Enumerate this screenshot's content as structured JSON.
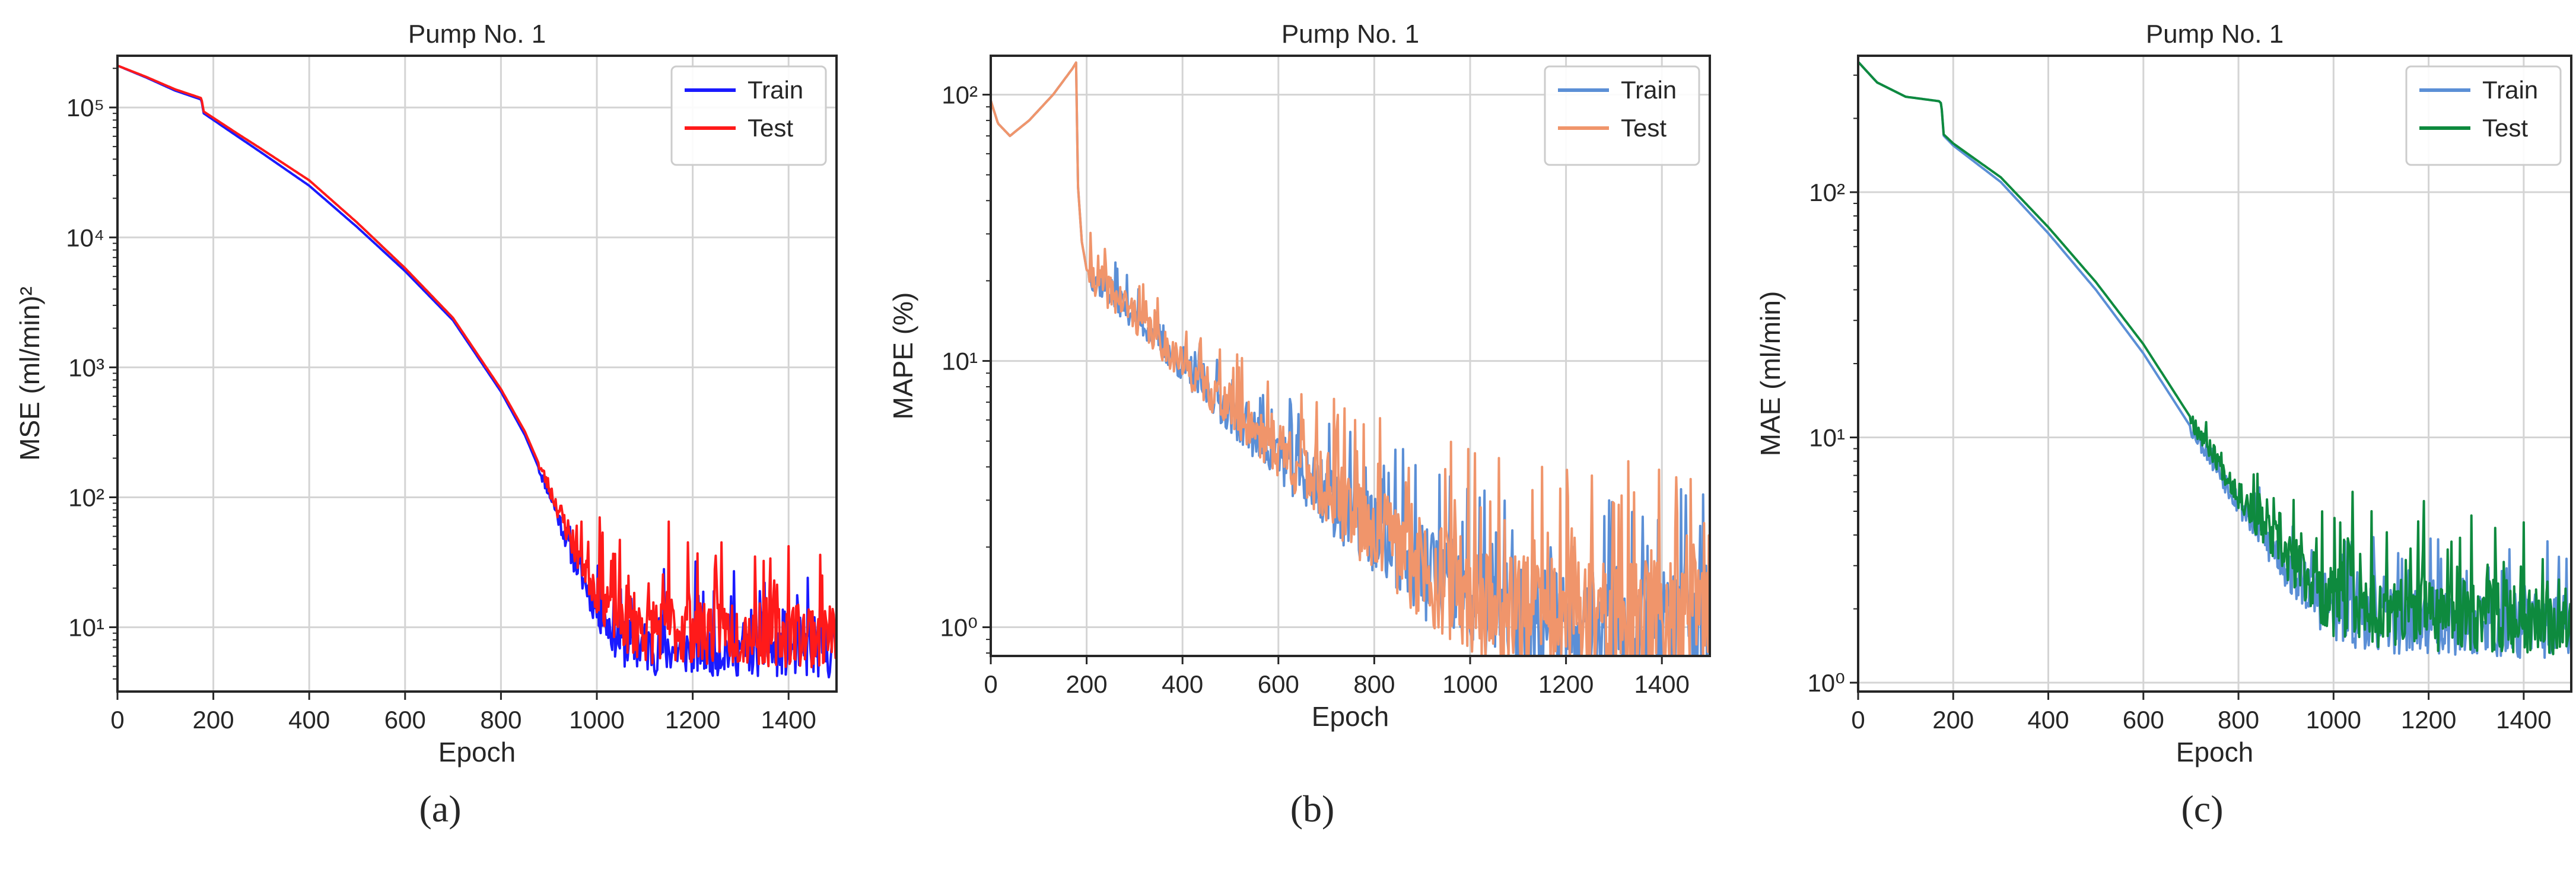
{
  "figure": {
    "captions": [
      "(a)",
      "(b)",
      "(c)"
    ]
  },
  "chart_data": [
    {
      "id": "a",
      "type": "line",
      "title": "Pump No. 1",
      "xlabel": "Epoch",
      "ylabel": "MSE (ml/min)²",
      "caption": "(a)",
      "yscale": "log",
      "xlim": [
        0,
        1500
      ],
      "ylim": [
        3.2,
        250000
      ],
      "xticks": [
        0,
        200,
        400,
        600,
        800,
        1000,
        1200,
        1400
      ],
      "yticks": [
        10,
        100,
        1000,
        10000,
        100000
      ],
      "ytick_labels": [
        "10¹",
        "10²",
        "10³",
        "10⁴",
        "10⁵"
      ],
      "grid": true,
      "legend_position": "top-right",
      "series": [
        {
          "name": "Train",
          "color": "#1a1aff",
          "width": 4,
          "anchors": [
            [
              0,
              210000
            ],
            [
              60,
              170000
            ],
            [
              120,
              135000
            ],
            [
              175,
              115000
            ],
            [
              180,
              90000
            ],
            [
              250,
              60000
            ],
            [
              300,
              45000
            ],
            [
              400,
              25000
            ],
            [
              500,
              12000
            ],
            [
              600,
              5500
            ],
            [
              700,
              2300
            ],
            [
              800,
              650
            ],
            [
              850,
              300
            ],
            [
              900,
              110
            ],
            [
              950,
              35
            ],
            [
              1000,
              14
            ],
            [
              1050,
              8
            ],
            [
              1100,
              7
            ],
            [
              1500,
              6.5
            ]
          ],
          "noise": {
            "start": 880,
            "base_amp": 0.1,
            "full_amp": 0.42,
            "ramp_start": 900,
            "ramp_end": 1050,
            "spikes": [
              [
                1010,
                50
              ],
              [
                1140,
                28
              ],
              [
                1205,
                32
              ],
              [
                1285,
                27
              ],
              [
                1350,
                22
              ],
              [
                1440,
                24
              ]
            ]
          },
          "seed": 11
        },
        {
          "name": "Test",
          "color": "#ff1a1a",
          "width": 4,
          "anchors": [
            [
              0,
              210000
            ],
            [
              60,
              172000
            ],
            [
              120,
              138000
            ],
            [
              175,
              118000
            ],
            [
              180,
              93000
            ],
            [
              250,
              63000
            ],
            [
              300,
              48000
            ],
            [
              400,
              27500
            ],
            [
              500,
              13000
            ],
            [
              600,
              5800
            ],
            [
              700,
              2400
            ],
            [
              800,
              680
            ],
            [
              850,
              320
            ],
            [
              900,
              120
            ],
            [
              950,
              45
            ],
            [
              1000,
              20
            ],
            [
              1050,
              12
            ],
            [
              1100,
              10
            ],
            [
              1500,
              9
            ]
          ],
          "noise": {
            "start": 880,
            "base_amp": 0.12,
            "full_amp": 0.55,
            "ramp_start": 900,
            "ramp_end": 1050,
            "spikes": [
              [
                1005,
                70
              ],
              [
                1150,
                65
              ],
              [
                1190,
                45
              ],
              [
                1260,
                45
              ],
              [
                1330,
                35
              ],
              [
                1400,
                42
              ],
              [
                1470,
                25
              ]
            ]
          },
          "seed": 23
        }
      ]
    },
    {
      "id": "b",
      "type": "line",
      "title": "Pump No. 1",
      "xlabel": "Epoch",
      "ylabel": "MAPE (%)",
      "caption": "(b)",
      "yscale": "log",
      "xlim": [
        0,
        1500
      ],
      "ylim": [
        0.78,
        140
      ],
      "xticks": [
        0,
        200,
        400,
        600,
        800,
        1000,
        1200,
        1400
      ],
      "yticks": [
        1,
        10,
        100
      ],
      "ytick_labels": [
        "10⁰",
        "10¹",
        "10²"
      ],
      "grid": true,
      "legend_position": "top-right",
      "series": [
        {
          "name": "Train",
          "color": "#5b8fd6",
          "width": 4,
          "anchors": [
            [
              0,
              95
            ],
            [
              15,
              78
            ],
            [
              40,
              70
            ],
            [
              80,
              80
            ],
            [
              130,
              100
            ],
            [
              170,
              125
            ],
            [
              178,
              132
            ],
            [
              182,
              45
            ],
            [
              190,
              28
            ],
            [
              200,
              22
            ],
            [
              300,
              15
            ],
            [
              400,
              9.5
            ],
            [
              500,
              6.5
            ],
            [
              600,
              4.5
            ],
            [
              700,
              3.2
            ],
            [
              800,
              2.3
            ],
            [
              900,
              1.7
            ],
            [
              1000,
              1.3
            ],
            [
              1100,
              1.15
            ],
            [
              1200,
              1.1
            ],
            [
              1500,
              1.05
            ]
          ],
          "noise": {
            "start": 205,
            "base_amp": 0.12,
            "full_amp": 0.45,
            "ramp_start": 400,
            "ramp_end": 1000,
            "spikes": [
              [
                1360,
                2.6
              ],
              [
                1480,
                2.4
              ]
            ]
          },
          "seed": 37
        },
        {
          "name": "Test",
          "color": "#f0956b",
          "width": 4,
          "anchors": [
            [
              0,
              95
            ],
            [
              15,
              78
            ],
            [
              40,
              70
            ],
            [
              80,
              80
            ],
            [
              130,
              100
            ],
            [
              170,
              125
            ],
            [
              178,
              132
            ],
            [
              182,
              45
            ],
            [
              190,
              28
            ],
            [
              200,
              22
            ],
            [
              300,
              15
            ],
            [
              400,
              9.8
            ],
            [
              500,
              6.8
            ],
            [
              600,
              4.8
            ],
            [
              700,
              3.4
            ],
            [
              800,
              2.4
            ],
            [
              900,
              1.75
            ],
            [
              1000,
              1.35
            ],
            [
              1100,
              1.2
            ],
            [
              1200,
              1.15
            ],
            [
              1500,
              1.1
            ]
          ],
          "noise": {
            "start": 205,
            "base_amp": 0.14,
            "full_amp": 0.5,
            "ramp_start": 400,
            "ramp_end": 1000,
            "spikes": [
              [
                680,
                7
              ],
              [
                760,
                6
              ],
              [
                1010,
                4.5
              ],
              [
                1150,
                4
              ],
              [
                1330,
                4.2
              ],
              [
                1460,
                3.6
              ]
            ]
          },
          "seed": 41
        }
      ]
    },
    {
      "id": "c",
      "type": "line",
      "title": "Pump No. 1",
      "xlabel": "Epoch",
      "ylabel": "MAE (ml/min)",
      "caption": "(c)",
      "yscale": "log",
      "xlim": [
        0,
        1500
      ],
      "ylim": [
        0.92,
        360
      ],
      "xticks": [
        0,
        200,
        400,
        600,
        800,
        1000,
        1200,
        1400
      ],
      "yticks": [
        1,
        10,
        100
      ],
      "ytick_labels": [
        "10⁰",
        "10¹",
        "10²"
      ],
      "grid": true,
      "legend_position": "top-right",
      "series": [
        {
          "name": "Train",
          "color": "#5b8fd6",
          "width": 4,
          "anchors": [
            [
              0,
              340
            ],
            [
              40,
              280
            ],
            [
              100,
              245
            ],
            [
              170,
              235
            ],
            [
              175,
              230
            ],
            [
              180,
              170
            ],
            [
              200,
              155
            ],
            [
              300,
              110
            ],
            [
              400,
              68
            ],
            [
              500,
              40
            ],
            [
              600,
              22
            ],
            [
              700,
              11
            ],
            [
              800,
              5.5
            ],
            [
              900,
              3
            ],
            [
              1000,
              2
            ],
            [
              1100,
              1.85
            ],
            [
              1500,
              1.75
            ]
          ],
          "noise": {
            "start": 700,
            "base_amp": 0.08,
            "full_amp": 0.3,
            "ramp_start": 750,
            "ramp_end": 1000,
            "spikes": [
              [
                1370,
                3.5
              ],
              [
                1490,
                3.2
              ]
            ]
          },
          "seed": 53
        },
        {
          "name": "Test",
          "color": "#0e8a3e",
          "width": 4,
          "anchors": [
            [
              0,
              340
            ],
            [
              40,
              280
            ],
            [
              100,
              245
            ],
            [
              170,
              235
            ],
            [
              175,
              230
            ],
            [
              180,
              172
            ],
            [
              200,
              158
            ],
            [
              300,
              115
            ],
            [
              400,
              72
            ],
            [
              500,
              43
            ],
            [
              600,
              24
            ],
            [
              700,
              12
            ],
            [
              800,
              6
            ],
            [
              900,
              3.3
            ],
            [
              1000,
              2.2
            ],
            [
              1100,
              2
            ],
            [
              1500,
              1.9
            ]
          ],
          "noise": {
            "start": 700,
            "base_amp": 0.09,
            "full_amp": 0.33,
            "ramp_start": 750,
            "ramp_end": 1000,
            "spikes": [
              [
                1040,
                6
              ],
              [
                1080,
                5
              ],
              [
                1190,
                5.5
              ],
              [
                1290,
                4.8
              ],
              [
                1400,
                4.5
              ]
            ]
          },
          "seed": 67
        }
      ]
    }
  ]
}
